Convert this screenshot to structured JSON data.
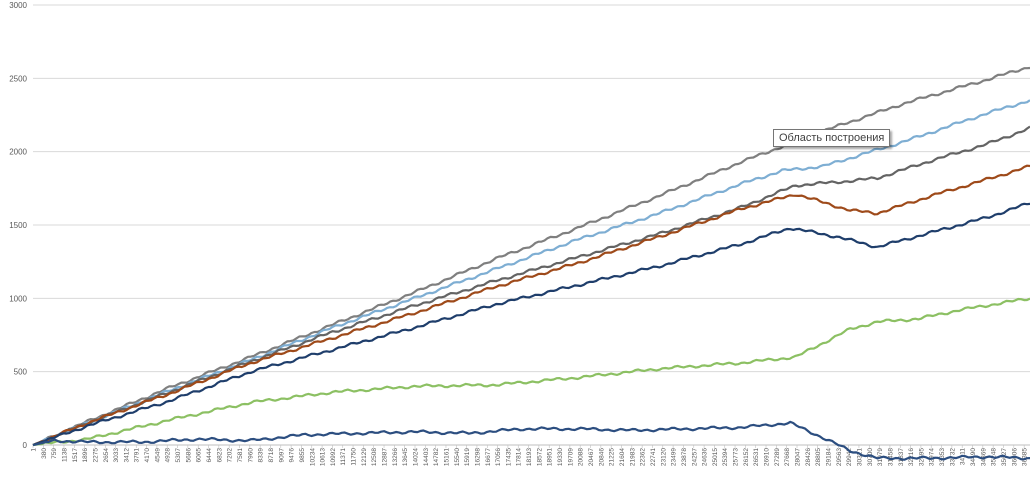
{
  "chart_data": {
    "type": "line",
    "title": "",
    "xlabel": "",
    "ylabel": "",
    "ylim": [
      0,
      3000
    ],
    "yticks": [
      0,
      500,
      1000,
      1500,
      2000,
      2500,
      3000
    ],
    "grid": true,
    "x_ticks": [
      1,
      380,
      759,
      1138,
      1517,
      1896,
      2275,
      2654,
      3033,
      3412,
      3791,
      4170,
      4549,
      4928,
      5307,
      5686,
      6065,
      6444,
      6823,
      7202,
      7581,
      7960,
      8339,
      8718,
      9097,
      9476,
      9855,
      10234,
      10613,
      10992,
      11371,
      11750,
      12129,
      12508,
      12887,
      13266,
      13645,
      14024,
      14403,
      14782,
      15161,
      15540,
      15919,
      16298,
      16677,
      17056,
      17435,
      17814,
      18193,
      18572,
      18951,
      19330,
      19709,
      20088,
      20467,
      20846,
      21225,
      21604,
      21983,
      22362,
      22741,
      23120,
      23499,
      23878,
      24257,
      24636,
      25015,
      25394,
      25773,
      26152,
      26531,
      26910,
      27289,
      27668,
      28047,
      28426,
      28805,
      29184,
      29563,
      29942,
      30321,
      30700,
      31079,
      31458,
      31837,
      32216,
      32595,
      32974,
      33353,
      33732,
      34111,
      34490,
      34869,
      35248,
      35627,
      36006,
      36385
    ],
    "x_range": [
      1,
      36600
    ],
    "series": [
      {
        "color": "#7f7f7f",
        "x": [
          1,
          2000,
          5000,
          8000,
          11000,
          14000,
          17000,
          20000,
          23000,
          26000,
          29000,
          32000,
          35000,
          36600
        ],
        "values": [
          0,
          160,
          390,
          600,
          820,
          1040,
          1270,
          1480,
          1700,
          1930,
          2140,
          2330,
          2490,
          2580
        ]
      },
      {
        "color": "#7eaed3",
        "x": [
          1,
          2000,
          5000,
          8000,
          11000,
          14000,
          17000,
          20000,
          23000,
          26000,
          27500,
          29000,
          32000,
          35000,
          36600
        ],
        "values": [
          0,
          150,
          370,
          580,
          800,
          1000,
          1200,
          1400,
          1580,
          1780,
          1870,
          1900,
          2070,
          2260,
          2350
        ]
      },
      {
        "color": "#646464",
        "x": [
          1,
          2000,
          5000,
          8000,
          11000,
          14000,
          17000,
          20000,
          23000,
          26000,
          28000,
          30000,
          31000,
          33000,
          35000,
          36600
        ],
        "values": [
          0,
          150,
          360,
          570,
          770,
          950,
          1120,
          1280,
          1440,
          1620,
          1770,
          1800,
          1820,
          1940,
          2050,
          2160
        ]
      },
      {
        "color": "#9e4a1a",
        "x": [
          1,
          2000,
          5000,
          8000,
          11000,
          14000,
          17000,
          20000,
          23000,
          26000,
          28000,
          30000,
          31000,
          33000,
          35000,
          36600
        ],
        "values": [
          0,
          150,
          350,
          560,
          730,
          900,
          1080,
          1240,
          1420,
          1610,
          1710,
          1600,
          1580,
          1700,
          1810,
          1900
        ]
      },
      {
        "color": "#1f3e6b",
        "x": [
          1,
          2000,
          5000,
          8000,
          11000,
          14000,
          17000,
          20000,
          23000,
          26000,
          27800,
          29500,
          31000,
          33000,
          35000,
          36600
        ],
        "values": [
          0,
          130,
          300,
          500,
          650,
          800,
          960,
          1090,
          1220,
          1370,
          1480,
          1420,
          1350,
          1450,
          1550,
          1650
        ]
      },
      {
        "color": "#8cc063",
        "x": [
          1,
          2000,
          5000,
          8000,
          11000,
          14000,
          17000,
          20000,
          23000,
          26000,
          28000,
          30000,
          31000,
          32500,
          34000,
          36600
        ],
        "values": [
          0,
          40,
          170,
          290,
          360,
          400,
          410,
          460,
          520,
          560,
          600,
          790,
          840,
          860,
          920,
          1000
        ]
      },
      {
        "color": "#2c4e80",
        "x": [
          1,
          800,
          2000,
          4000,
          6000,
          8000,
          10000,
          12000,
          14000,
          16000,
          18000,
          20000,
          22000,
          24000,
          26000,
          27800,
          29000,
          30000,
          31000,
          33000,
          35000,
          36600
        ],
        "values": [
          0,
          30,
          20,
          20,
          40,
          30,
          70,
          80,
          90,
          80,
          110,
          110,
          100,
          110,
          120,
          150,
          50,
          -40,
          -90,
          -90,
          -80,
          -90
        ]
      }
    ]
  },
  "tooltip": {
    "label": "Область построения"
  }
}
